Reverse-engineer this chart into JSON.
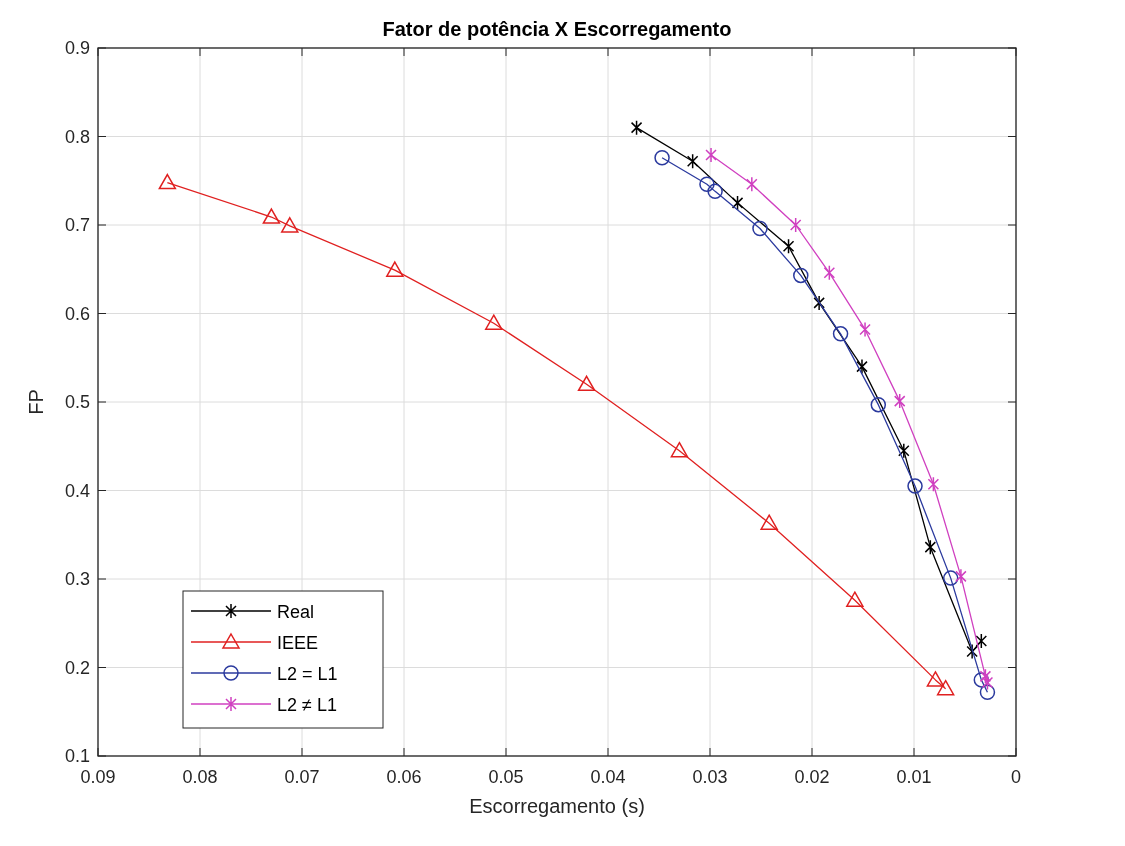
{
  "chart_data": {
    "type": "line",
    "title": "Fator de potência X Escorregamento",
    "xlabel": "Escorregamento (s)",
    "ylabel": "FP",
    "xlim": [
      0.09,
      0
    ],
    "xticks": [
      0.09,
      0.08,
      0.07,
      0.06,
      0.05,
      0.04,
      0.03,
      0.02,
      0.01,
      0
    ],
    "ylim": [
      0.1,
      0.9
    ],
    "yticks": [
      0.1,
      0.2,
      0.3,
      0.4,
      0.5,
      0.6,
      0.7,
      0.8,
      0.9
    ],
    "grid": true,
    "legend": "bottom left",
    "series": [
      {
        "name": "Real",
        "color": "#000000",
        "marker": "cross",
        "x": [
          0.0372,
          0.0317,
          0.0273,
          0.0223,
          0.0193,
          0.0151,
          0.011,
          0.0084,
          0.0043,
          0.0034
        ],
        "values": [
          0.81,
          0.772,
          0.725,
          0.676,
          0.612,
          0.54,
          0.445,
          0.336,
          0.218,
          0.23
        ]
      },
      {
        "name": "IEEE",
        "color": "#e02020",
        "marker": "triangle",
        "x": [
          0.0832,
          0.073,
          0.0712,
          0.0609,
          0.0512,
          0.0421,
          0.033,
          0.0242,
          0.0158,
          0.0079,
          0.0069
        ],
        "values": [
          0.748,
          0.709,
          0.699,
          0.649,
          0.589,
          0.52,
          0.445,
          0.363,
          0.276,
          0.186,
          0.176
        ]
      },
      {
        "name": "L2 = L1",
        "color": "#2b3a9e",
        "marker": "circle",
        "x": [
          0.0347,
          0.0303,
          0.0295,
          0.0251,
          0.0211,
          0.0172,
          0.0135,
          0.0099,
          0.0064,
          0.0034,
          0.0028
        ],
        "values": [
          0.776,
          0.746,
          0.738,
          0.696,
          0.643,
          0.577,
          0.497,
          0.405,
          0.301,
          0.186,
          0.172
        ]
      },
      {
        "name": "L2 ≠  L1",
        "color": "#d040c0",
        "marker": "cross",
        "x": [
          0.0299,
          0.0259,
          0.0216,
          0.0183,
          0.0148,
          0.0114,
          0.0081,
          0.0054,
          0.003,
          0.0028
        ],
        "values": [
          0.779,
          0.746,
          0.7,
          0.646,
          0.582,
          0.501,
          0.407,
          0.303,
          0.19,
          0.183
        ]
      }
    ]
  }
}
